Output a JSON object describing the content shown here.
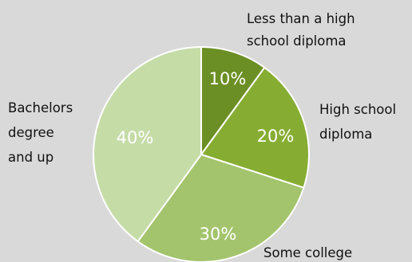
{
  "chart_data": {
    "type": "pie",
    "title": "",
    "slices": [
      {
        "label": "Less than a high school diploma",
        "label_lines": [
          "Less than a high",
          "school diploma"
        ],
        "value": 10,
        "value_label": "10%",
        "color": "#6b8f24"
      },
      {
        "label": "High school diploma",
        "label_lines": [
          "High school",
          "diploma"
        ],
        "value": 20,
        "value_label": "20%",
        "color": "#86ad32"
      },
      {
        "label": "Some college",
        "label_lines": [
          "Some college"
        ],
        "value": 30,
        "value_label": "30%",
        "color": "#a3c46c"
      },
      {
        "label": "Bachelors degree and up",
        "label_lines": [
          "Bachelors",
          "degree",
          "and up"
        ],
        "value": 40,
        "value_label": "40%",
        "color": "#c5dca7"
      }
    ],
    "start_angle": "12 o'clock",
    "direction": "clockwise",
    "legend": "none",
    "background": "#d9d9d9"
  }
}
